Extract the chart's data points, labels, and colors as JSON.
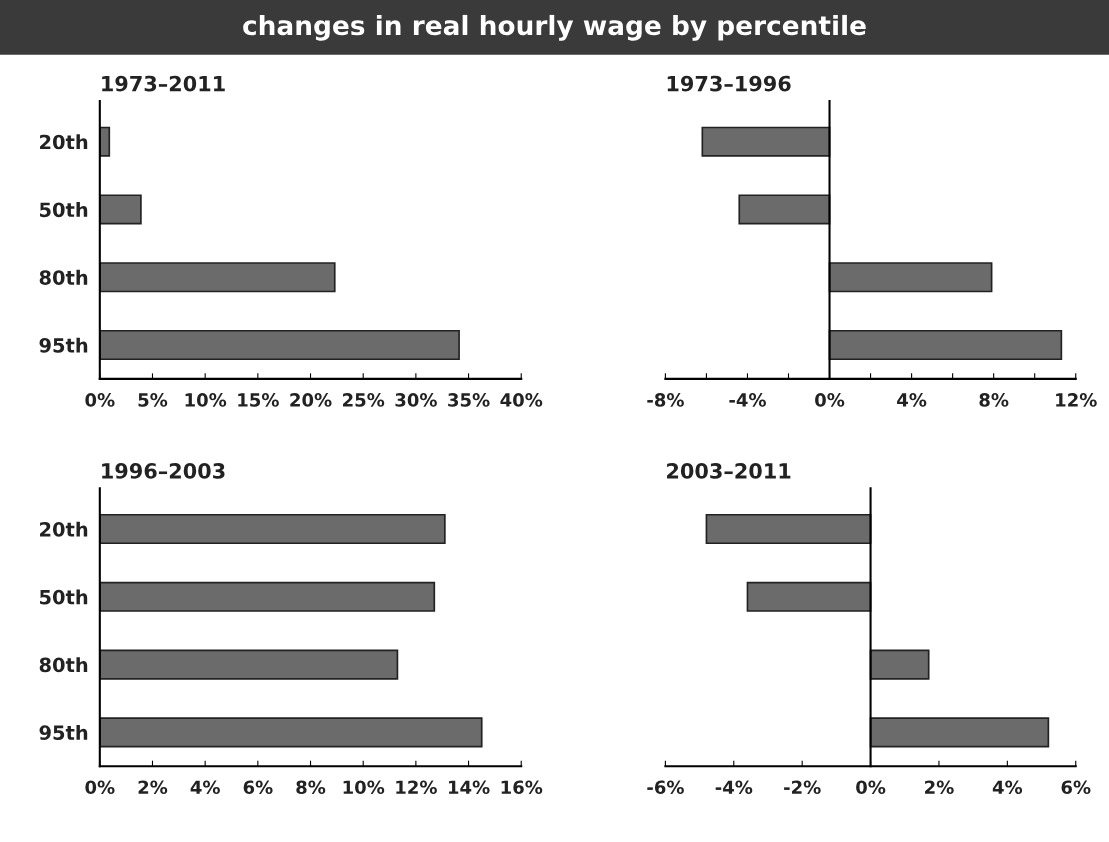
{
  "chart_data": [
    {
      "type": "bar",
      "orientation": "horizontal",
      "title": "1973–2011",
      "annotations": [
        "changes in real hourly wage by percentile"
      ],
      "categories": [
        "20th",
        "50th",
        "80th",
        "95th"
      ],
      "values": [
        0.9,
        3.9,
        22.3,
        34.1
      ],
      "color": "#6b6b6b",
      "xlim": [
        0,
        40
      ],
      "xticks": [
        {
          "value": 0,
          "label": "0%"
        },
        {
          "value": 5,
          "label": "5%"
        },
        {
          "value": 10,
          "label": "10%"
        },
        {
          "value": 15,
          "label": "15%"
        },
        {
          "value": 20,
          "label": "20%"
        },
        {
          "value": 25,
          "label": "25%"
        },
        {
          "value": 30,
          "label": "30%"
        },
        {
          "value": 35,
          "label": "35%"
        },
        {
          "value": 40,
          "label": "40%"
        }
      ]
    },
    {
      "type": "bar",
      "orientation": "horizontal",
      "title": "1973–1996",
      "categories": [
        null,
        null,
        null,
        null
      ],
      "values": [
        -6.2,
        -4.4,
        7.9,
        11.3
      ],
      "color": "#6b6b6b",
      "xlim": [
        -8,
        12
      ],
      "tick_labels": "x",
      "xticks": [
        {
          "value": -8,
          "label": "-8%"
        },
        {
          "value": -6,
          "label": null
        },
        {
          "value": -4,
          "label": "-4%"
        },
        {
          "value": -2,
          "label": null
        },
        {
          "value": 0,
          "label": "0%"
        },
        {
          "value": 2,
          "label": null
        },
        {
          "value": 4,
          "label": "4%"
        },
        {
          "value": 6,
          "label": null
        },
        {
          "value": 8,
          "label": "8%"
        },
        {
          "value": 10,
          "label": null
        },
        {
          "value": 12,
          "label": "12%"
        }
      ]
    },
    {
      "type": "bar",
      "orientation": "horizontal",
      "title": "1996–2003",
      "categories": [
        "20th",
        "50th",
        "80th",
        "95th"
      ],
      "values": [
        13.1,
        12.7,
        11.3,
        14.5
      ],
      "color": "#6b6b6b",
      "xlim": [
        0,
        16
      ],
      "xticks": [
        {
          "value": 0,
          "label": "0%"
        },
        {
          "value": 2,
          "label": "2%"
        },
        {
          "value": 4,
          "label": "4%"
        },
        {
          "value": 6,
          "label": "6%"
        },
        {
          "value": 8,
          "label": "8%"
        },
        {
          "value": 10,
          "label": "10%"
        },
        {
          "value": 12,
          "label": "12%"
        },
        {
          "value": 14,
          "label": "14%"
        },
        {
          "value": 16,
          "label": "16%"
        }
      ]
    },
    {
      "type": "bar",
      "orientation": "horizontal",
      "title": "2003–2011",
      "categories": [
        null,
        null,
        null,
        null
      ],
      "values": [
        -4.8,
        -3.6,
        1.7,
        5.2
      ],
      "color": "#6b6b6b",
      "xlim": [
        -6,
        6
      ],
      "tick_labels": "x",
      "xticks": [
        {
          "value": -6,
          "label": "-6%"
        },
        {
          "value": -4,
          "label": "-4%"
        },
        {
          "value": -2,
          "label": "-2%"
        },
        {
          "value": 0,
          "label": "0%"
        },
        {
          "value": 2,
          "label": "2%"
        },
        {
          "value": 4,
          "label": "4%"
        },
        {
          "value": 6,
          "label": "6%"
        }
      ]
    }
  ]
}
